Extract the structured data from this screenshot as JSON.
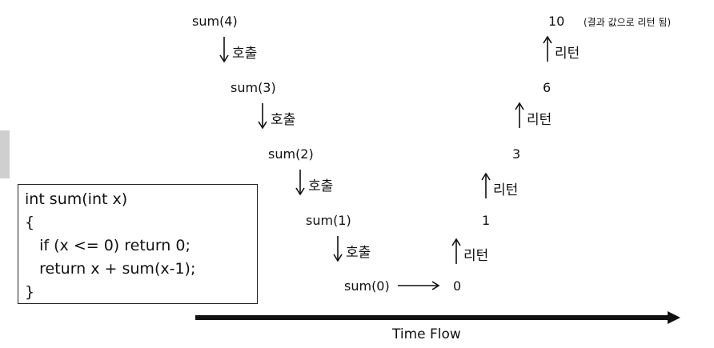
{
  "calls": [
    {
      "expr": "sum(4)"
    },
    {
      "expr": "sum(3)"
    },
    {
      "expr": "sum(2)"
    },
    {
      "expr": "sum(1)"
    },
    {
      "expr": "sum(0)"
    }
  ],
  "call_label": "호출",
  "return_label": "리턴",
  "returns": [
    "0",
    "1",
    "3",
    "6",
    "10"
  ],
  "final_note": "(결과 값으로 리턴 됨)",
  "code": {
    "lines": [
      "int sum(int x)",
      "{",
      "   if (x <= 0) return 0;",
      "   return x + sum(x-1);",
      "}"
    ]
  },
  "timeline_label": "Time Flow"
}
